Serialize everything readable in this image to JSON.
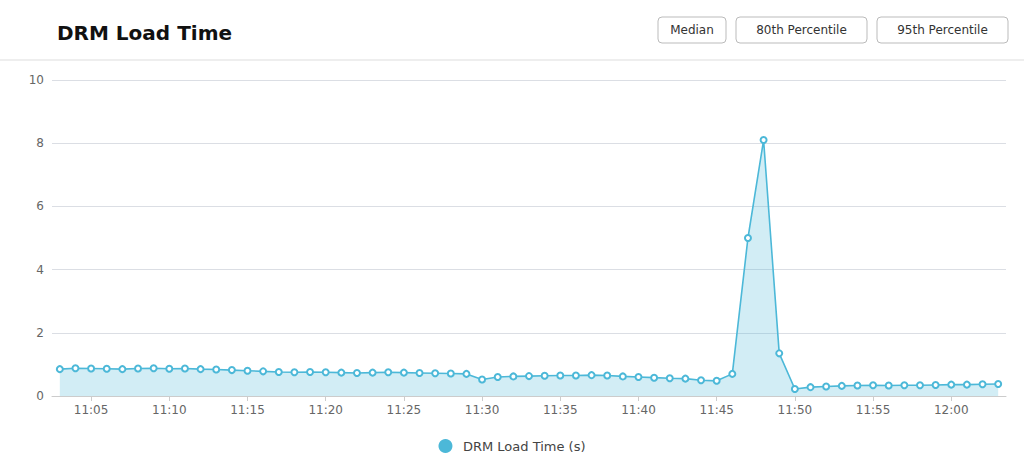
{
  "chart_data": {
    "type": "area",
    "title": "DRM Load Time",
    "annotations": [
      "Median",
      "80th Percentile",
      "95th Percentile"
    ],
    "categories": [
      null,
      null,
      "11:05",
      null,
      null,
      null,
      null,
      "11:10",
      null,
      null,
      null,
      null,
      "11:15",
      null,
      null,
      null,
      null,
      "11:20",
      null,
      null,
      null,
      null,
      "11:25",
      null,
      null,
      null,
      null,
      "11:30",
      null,
      null,
      null,
      null,
      "11:35",
      null,
      null,
      null,
      null,
      "11:40",
      null,
      null,
      null,
      null,
      "11:45",
      null,
      null,
      null,
      null,
      "11:50",
      null,
      null,
      null,
      null,
      "11:55",
      null,
      null,
      null,
      null,
      "12:00",
      null,
      null,
      null
    ],
    "series": [
      {
        "name": "DRM Load Time (s)",
        "color": "#4cb8d8",
        "marker": "circle",
        "values": [
          0.85,
          0.88,
          0.87,
          0.86,
          0.85,
          0.87,
          0.88,
          0.86,
          0.87,
          0.85,
          0.84,
          0.82,
          0.8,
          0.78,
          0.76,
          0.75,
          0.76,
          0.75,
          0.74,
          0.73,
          0.74,
          0.75,
          0.74,
          0.73,
          0.72,
          0.71,
          0.7,
          0.52,
          0.6,
          0.62,
          0.63,
          0.64,
          0.65,
          0.65,
          0.66,
          0.65,
          0.62,
          0.6,
          0.58,
          0.56,
          0.55,
          0.5,
          0.48,
          0.7,
          5.0,
          8.1,
          1.35,
          0.22,
          0.28,
          0.3,
          0.32,
          0.33,
          0.34,
          0.33,
          0.34,
          0.34,
          0.35,
          0.36,
          0.36,
          0.37,
          0.38
        ]
      }
    ],
    "ylim": [
      0,
      10
    ],
    "yticks": [
      0,
      2,
      4,
      6,
      8,
      10
    ],
    "grid": true,
    "legend": "bottom"
  }
}
